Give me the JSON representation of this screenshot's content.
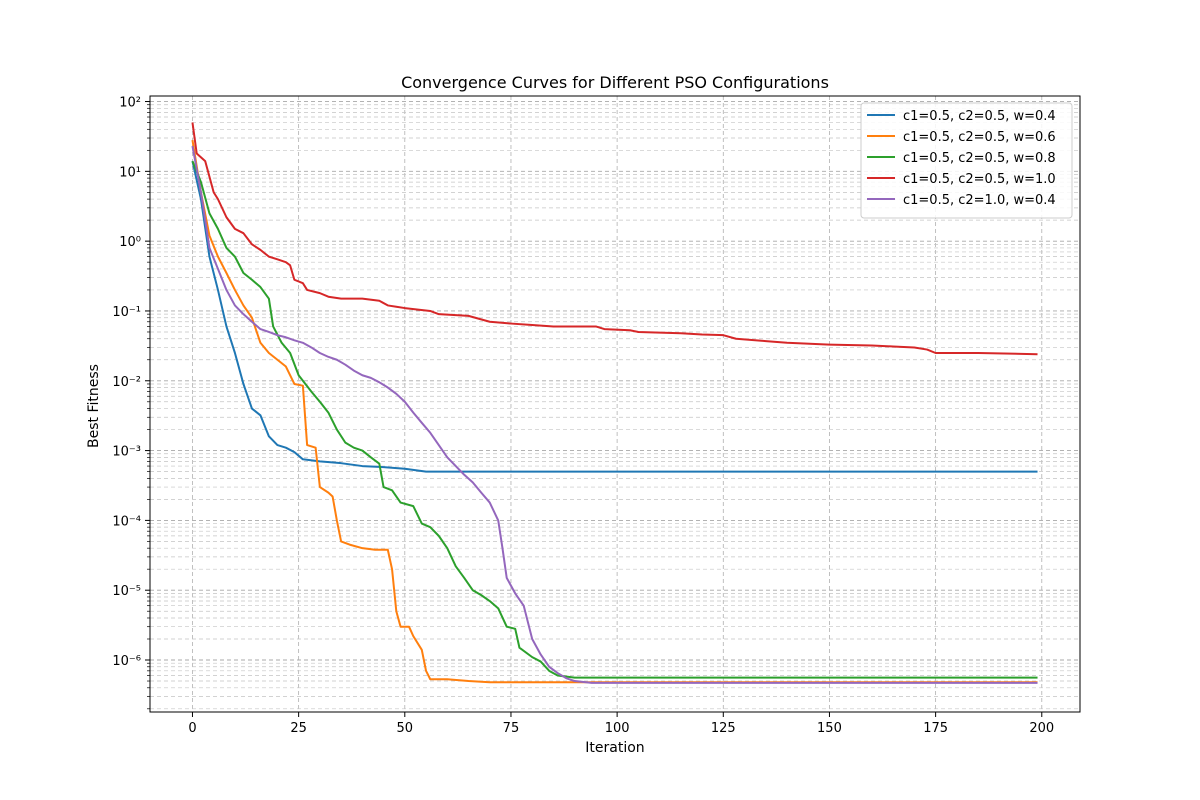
{
  "chart_data": {
    "type": "line",
    "title": "Convergence Curves for Different PSO Configurations",
    "xlabel": "Iteration",
    "ylabel": "Best Fitness",
    "xlim": [
      -10,
      209
    ],
    "ylim": [
      1.8e-07,
      120
    ],
    "yscale": "log",
    "grid": true,
    "legend_position": "top-right",
    "x_ticks": [
      0,
      25,
      50,
      75,
      100,
      125,
      150,
      175,
      200
    ],
    "x_tick_labels": [
      "0",
      "25",
      "50",
      "75",
      "100",
      "125",
      "150",
      "175",
      "200"
    ],
    "y_ticks": [
      1e-06,
      1e-05,
      0.0001,
      0.001,
      0.01,
      0.1,
      1,
      10,
      100
    ],
    "y_tick_labels": [
      "10⁻⁶",
      "10⁻⁵",
      "10⁻⁴",
      "10⁻³",
      "10⁻²",
      "10⁻¹",
      "10⁰",
      "10¹",
      "10²"
    ],
    "series": [
      {
        "name": "c1=0.5, c2=0.5, w=0.4",
        "color": "#1f77b4",
        "points": [
          [
            0,
            14
          ],
          [
            2,
            4
          ],
          [
            4,
            0.6
          ],
          [
            6,
            0.2
          ],
          [
            8,
            0.06
          ],
          [
            10,
            0.025
          ],
          [
            12,
            0.009
          ],
          [
            14,
            0.004
          ],
          [
            16,
            0.0032
          ],
          [
            18,
            0.0016
          ],
          [
            20,
            0.0012
          ],
          [
            22,
            0.0011
          ],
          [
            24,
            0.00095
          ],
          [
            26,
            0.00075
          ],
          [
            30,
            0.0007
          ],
          [
            35,
            0.00066
          ],
          [
            40,
            0.0006
          ],
          [
            45,
            0.00058
          ],
          [
            50,
            0.00055
          ],
          [
            55,
            0.0005
          ],
          [
            70,
            0.0005
          ],
          [
            100,
            0.0005
          ],
          [
            150,
            0.0005
          ],
          [
            199,
            0.0005
          ]
        ]
      },
      {
        "name": "c1=0.5, c2=0.5, w=0.6",
        "color": "#ff7f0e",
        "points": [
          [
            0,
            28
          ],
          [
            2,
            5
          ],
          [
            4,
            1.2
          ],
          [
            6,
            0.6
          ],
          [
            8,
            0.35
          ],
          [
            10,
            0.2
          ],
          [
            12,
            0.12
          ],
          [
            14,
            0.08
          ],
          [
            16,
            0.035
          ],
          [
            18,
            0.025
          ],
          [
            20,
            0.02
          ],
          [
            22,
            0.016
          ],
          [
            24,
            0.009
          ],
          [
            26,
            0.0085
          ],
          [
            27,
            0.0012
          ],
          [
            29,
            0.0011
          ],
          [
            30,
            0.0003
          ],
          [
            32,
            0.00025
          ],
          [
            33,
            0.00022
          ],
          [
            34,
            0.0001
          ],
          [
            35,
            5e-05
          ],
          [
            37,
            4.5e-05
          ],
          [
            40,
            4e-05
          ],
          [
            43,
            3.8e-05
          ],
          [
            46,
            3.8e-05
          ],
          [
            47,
            2e-05
          ],
          [
            48,
            5e-06
          ],
          [
            49,
            3e-06
          ],
          [
            51,
            3e-06
          ],
          [
            52,
            2.2e-06
          ],
          [
            54,
            1.4e-06
          ],
          [
            55,
            7e-07
          ],
          [
            56,
            5.3e-07
          ],
          [
            60,
            5.3e-07
          ],
          [
            65,
            5e-07
          ],
          [
            70,
            4.8e-07
          ],
          [
            90,
            4.8e-07
          ],
          [
            199,
            4.8e-07
          ]
        ]
      },
      {
        "name": "c1=0.5, c2=0.5, w=0.8",
        "color": "#2ca02c",
        "points": [
          [
            0,
            14
          ],
          [
            2,
            7
          ],
          [
            4,
            2.5
          ],
          [
            6,
            1.5
          ],
          [
            8,
            0.8
          ],
          [
            10,
            0.6
          ],
          [
            12,
            0.35
          ],
          [
            14,
            0.28
          ],
          [
            16,
            0.22
          ],
          [
            18,
            0.15
          ],
          [
            19,
            0.06
          ],
          [
            21,
            0.035
          ],
          [
            23,
            0.025
          ],
          [
            25,
            0.012
          ],
          [
            26,
            0.01
          ],
          [
            28,
            0.007
          ],
          [
            30,
            0.005
          ],
          [
            32,
            0.0035
          ],
          [
            34,
            0.002
          ],
          [
            36,
            0.0013
          ],
          [
            38,
            0.0011
          ],
          [
            40,
            0.001
          ],
          [
            42,
            0.0008
          ],
          [
            44,
            0.00065
          ],
          [
            45,
            0.0003
          ],
          [
            47,
            0.00027
          ],
          [
            49,
            0.00018
          ],
          [
            52,
            0.00016
          ],
          [
            54,
            9e-05
          ],
          [
            56,
            8e-05
          ],
          [
            58,
            6e-05
          ],
          [
            60,
            4e-05
          ],
          [
            62,
            2.2e-05
          ],
          [
            64,
            1.5e-05
          ],
          [
            66,
            1e-05
          ],
          [
            68,
            8.5e-06
          ],
          [
            70,
            7e-06
          ],
          [
            72,
            5.5e-06
          ],
          [
            74,
            3e-06
          ],
          [
            76,
            2.8e-06
          ],
          [
            77,
            1.5e-06
          ],
          [
            80,
            1.1e-06
          ],
          [
            82,
            9.5e-07
          ],
          [
            84,
            7e-07
          ],
          [
            86,
            6e-07
          ],
          [
            90,
            5.6e-07
          ],
          [
            199,
            5.6e-07
          ]
        ]
      },
      {
        "name": "c1=0.5, c2=0.5, w=1.0",
        "color": "#d62728",
        "points": [
          [
            0,
            50
          ],
          [
            1,
            18
          ],
          [
            3,
            14
          ],
          [
            5,
            5
          ],
          [
            6,
            4
          ],
          [
            8,
            2.2
          ],
          [
            10,
            1.5
          ],
          [
            12,
            1.3
          ],
          [
            14,
            0.9
          ],
          [
            16,
            0.75
          ],
          [
            18,
            0.6
          ],
          [
            20,
            0.55
          ],
          [
            22,
            0.5
          ],
          [
            23,
            0.45
          ],
          [
            24,
            0.28
          ],
          [
            26,
            0.25
          ],
          [
            27,
            0.2
          ],
          [
            30,
            0.18
          ],
          [
            32,
            0.16
          ],
          [
            35,
            0.15
          ],
          [
            40,
            0.15
          ],
          [
            44,
            0.14
          ],
          [
            46,
            0.12
          ],
          [
            48,
            0.115
          ],
          [
            50,
            0.11
          ],
          [
            56,
            0.1
          ],
          [
            58,
            0.09
          ],
          [
            65,
            0.085
          ],
          [
            70,
            0.07
          ],
          [
            75,
            0.066
          ],
          [
            80,
            0.063
          ],
          [
            85,
            0.06
          ],
          [
            95,
            0.06
          ],
          [
            97,
            0.055
          ],
          [
            103,
            0.053
          ],
          [
            105,
            0.05
          ],
          [
            115,
            0.048
          ],
          [
            120,
            0.046
          ],
          [
            125,
            0.045
          ],
          [
            128,
            0.04
          ],
          [
            135,
            0.037
          ],
          [
            140,
            0.035
          ],
          [
            150,
            0.033
          ],
          [
            160,
            0.032
          ],
          [
            165,
            0.031
          ],
          [
            170,
            0.03
          ],
          [
            173,
            0.028
          ],
          [
            175,
            0.025
          ],
          [
            185,
            0.025
          ],
          [
            199,
            0.024
          ]
        ]
      },
      {
        "name": "c1=0.5, c2=1.0, w=0.4",
        "color": "#9467bd",
        "points": [
          [
            0,
            23
          ],
          [
            2,
            5
          ],
          [
            4,
            0.8
          ],
          [
            6,
            0.4
          ],
          [
            8,
            0.2
          ],
          [
            10,
            0.12
          ],
          [
            12,
            0.09
          ],
          [
            14,
            0.07
          ],
          [
            16,
            0.055
          ],
          [
            18,
            0.05
          ],
          [
            20,
            0.045
          ],
          [
            22,
            0.042
          ],
          [
            24,
            0.038
          ],
          [
            26,
            0.035
          ],
          [
            28,
            0.03
          ],
          [
            30,
            0.025
          ],
          [
            32,
            0.022
          ],
          [
            34,
            0.02
          ],
          [
            36,
            0.017
          ],
          [
            38,
            0.014
          ],
          [
            40,
            0.012
          ],
          [
            42,
            0.011
          ],
          [
            44,
            0.0095
          ],
          [
            46,
            0.008
          ],
          [
            48,
            0.0065
          ],
          [
            50,
            0.005
          ],
          [
            52,
            0.0035
          ],
          [
            54,
            0.0025
          ],
          [
            56,
            0.0018
          ],
          [
            58,
            0.0012
          ],
          [
            60,
            0.0008
          ],
          [
            62,
            0.0006
          ],
          [
            64,
            0.00045
          ],
          [
            66,
            0.00035
          ],
          [
            68,
            0.00025
          ],
          [
            70,
            0.00018
          ],
          [
            72,
            0.0001
          ],
          [
            73,
            4e-05
          ],
          [
            74,
            1.5e-05
          ],
          [
            76,
            9e-06
          ],
          [
            78,
            6e-06
          ],
          [
            80,
            2e-06
          ],
          [
            82,
            1.2e-06
          ],
          [
            84,
            8e-07
          ],
          [
            86,
            6.5e-07
          ],
          [
            88,
            5.5e-07
          ],
          [
            90,
            5e-07
          ],
          [
            94,
            4.7e-07
          ],
          [
            100,
            4.7e-07
          ],
          [
            199,
            4.7e-07
          ]
        ]
      }
    ]
  }
}
